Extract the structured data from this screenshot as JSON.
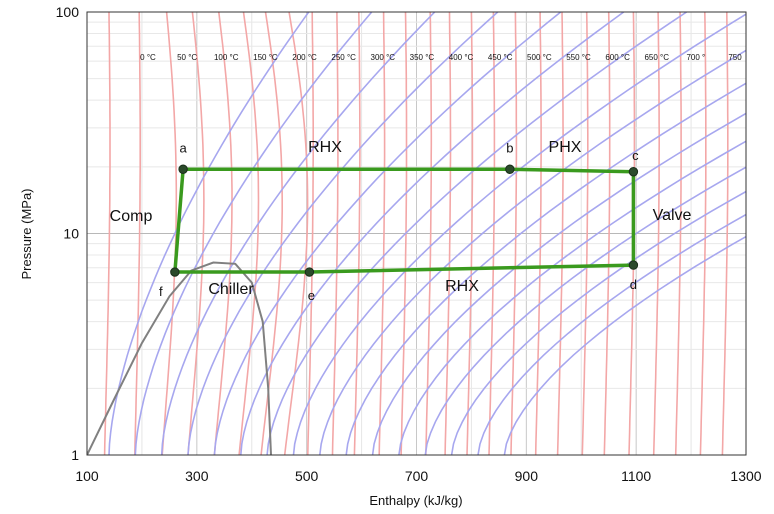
{
  "chart_data": {
    "type": "line",
    "title": "",
    "xlabel": "Enthalpy (kJ/kg)",
    "ylabel": "Pressure (MPa)",
    "xlim": [
      100,
      1300
    ],
    "ylim": [
      1,
      100
    ],
    "yscale": "log",
    "grid": true,
    "x_ticks": [
      "100",
      "300",
      "500",
      "700",
      "900",
      "1100",
      "1300"
    ],
    "y_ticks": [
      "1",
      "10",
      "100"
    ],
    "isotherm_labels": [
      "0 °C",
      "50 °C",
      "100 °C",
      "150 °C",
      "200 °C",
      "250 °C",
      "300 °C",
      "350 °C",
      "400 °C",
      "450 °C",
      "500 °C",
      "550 °C",
      "600 °C",
      "650 °C",
      "700 °",
      "750"
    ],
    "cycle": {
      "color": "#3a9a1e",
      "points": [
        {
          "label": "a",
          "h": 275,
          "p": 19.5
        },
        {
          "label": "b",
          "h": 870,
          "p": 19.5
        },
        {
          "label": "c",
          "h": 1095,
          "p": 19.0
        },
        {
          "label": "d",
          "h": 1095,
          "p": 7.2
        },
        {
          "label": "e",
          "h": 505,
          "p": 6.7
        },
        {
          "label": "f",
          "h": 260,
          "p": 6.7
        }
      ]
    },
    "saturation_dome": {
      "color": "#808080",
      "h": [
        100,
        150,
        200,
        250,
        290,
        330,
        370,
        400,
        420,
        430,
        435
      ],
      "p": [
        1.0,
        1.8,
        3.2,
        5.2,
        6.8,
        7.4,
        7.3,
        6.0,
        4.0,
        2.0,
        1.0
      ]
    },
    "region_labels": [
      "RHX",
      "PHX",
      "Valve",
      "RHX",
      "Chiller",
      "Comp"
    ]
  }
}
